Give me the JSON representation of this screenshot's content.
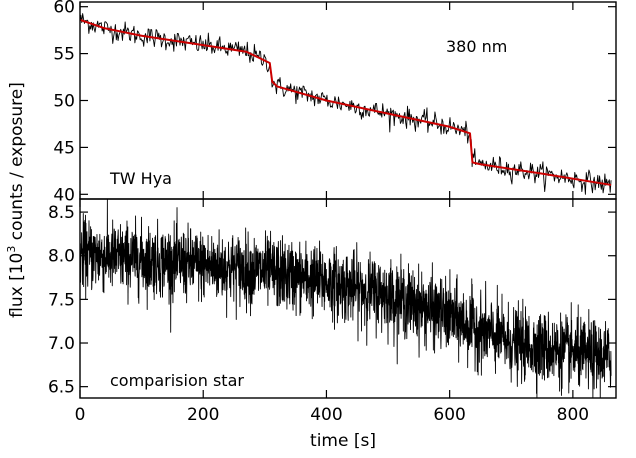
{
  "chart_data": [
    {
      "type": "line",
      "panel": "top",
      "annotations": [
        "TW Hya",
        "380 nm"
      ],
      "xlim": [
        0,
        870
      ],
      "ylim": [
        39.5,
        60.5
      ],
      "yticks": [
        40,
        45,
        50,
        55,
        60
      ],
      "series": [
        {
          "color": "#000000",
          "noise_sd": 0.55,
          "points": 600
        },
        {
          "color": "#cc0000",
          "x": [
            0,
            40,
            100,
            200,
            270,
            308,
            312,
            320,
            400,
            500,
            600,
            633,
            637,
            650,
            750,
            862
          ],
          "y": [
            58.6,
            57.7,
            56.9,
            55.9,
            55.2,
            54.0,
            52.0,
            51.5,
            50.0,
            48.6,
            47.2,
            46.5,
            43.4,
            43.2,
            42.2,
            41.0
          ]
        }
      ]
    },
    {
      "type": "line",
      "panel": "bottom",
      "annotations": [
        "comparision star"
      ],
      "xlabel": "time [s]",
      "xlim": [
        0,
        870
      ],
      "xticks": [
        0,
        200,
        400,
        600,
        800
      ],
      "ylim": [
        6.37,
        8.65
      ],
      "yticks": [
        6.5,
        7.0,
        7.5,
        8.0,
        8.5
      ],
      "series": [
        {
          "color": "#000000",
          "noise_sd": 0.2,
          "points": 2600,
          "x": [
            0,
            100,
            300,
            400,
            500,
            600,
            700,
            862
          ],
          "y": [
            8.02,
            7.96,
            7.82,
            7.7,
            7.55,
            7.3,
            7.0,
            6.82
          ]
        }
      ]
    }
  ],
  "ylabel": {
    "prefix": "flux [10",
    "sup": "3",
    "suffix": " counts / exposure]"
  }
}
